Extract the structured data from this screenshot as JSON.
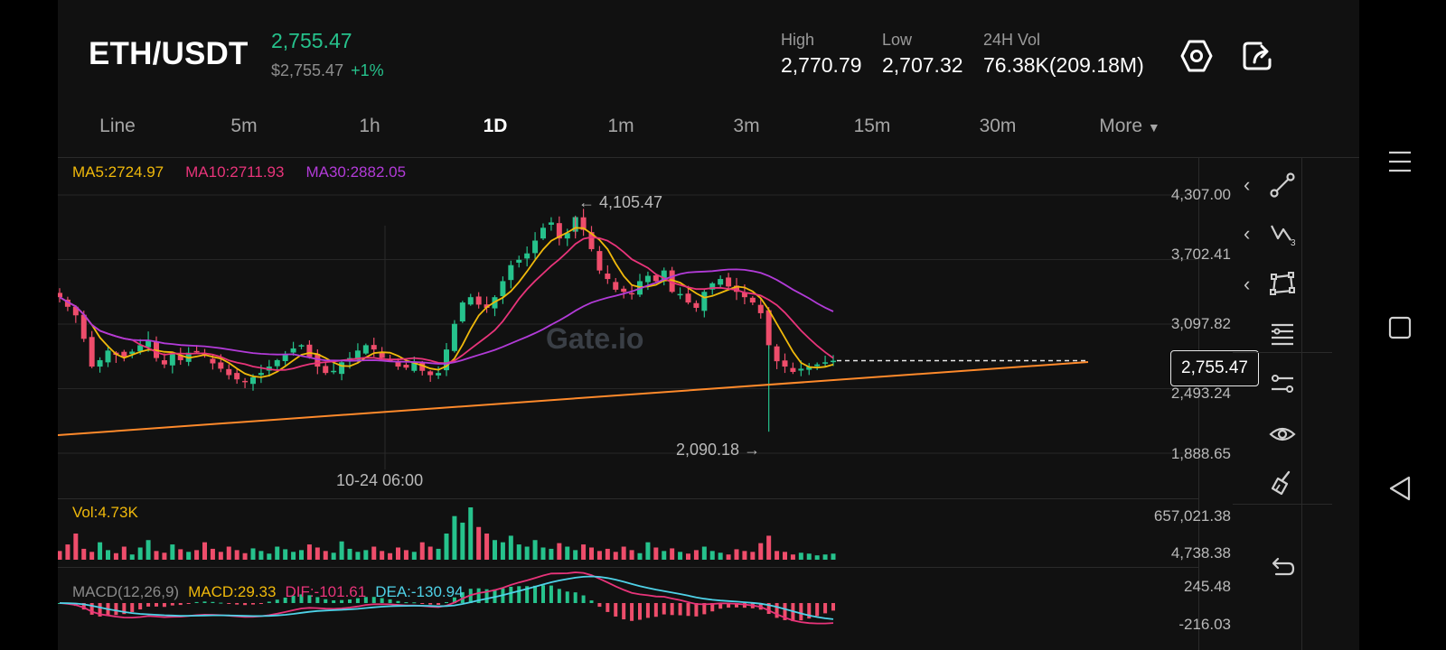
{
  "header": {
    "pair": "ETH/USDT",
    "price": "2,755.47",
    "price_usd": "$2,755.47",
    "change": "+1%",
    "stats": [
      {
        "label": "High",
        "value": "2,770.79"
      },
      {
        "label": "Low",
        "value": "2,707.32"
      },
      {
        "label": "24H Vol",
        "value": "76.38K(209.18M)"
      }
    ]
  },
  "tabs": [
    "Line",
    "5m",
    "1h",
    "1D",
    "1m",
    "3m",
    "15m",
    "30m",
    "More"
  ],
  "active_tab": "1D",
  "more_arrow": "▼",
  "ma": {
    "ma5": "MA5:2724.97",
    "ma10": "MA10:2711.93",
    "ma30": "MA30:2882.05"
  },
  "price_axis": [
    "4,307.00",
    "3,702.41",
    "3,097.82",
    "2,493.24",
    "1,888.65"
  ],
  "annotations": {
    "high": "← 4,105.47",
    "low": "2,090.18 →",
    "crosshair_time": "10-24 06:00"
  },
  "current_price_tag": "2,755.47",
  "watermark": "Gate.io",
  "volume": {
    "label": "Vol:4.73K",
    "axis_top": "657,021.38",
    "axis_bottom": "4,738.38"
  },
  "macd": {
    "params": "MACD(12,26,9)",
    "macd": "MACD:29.33",
    "dif": "DIF:-101.61",
    "dea": "DEA:-130.94",
    "axis_top": "245.48",
    "axis_bottom": "-216.03"
  },
  "colors": {
    "up": "#26c28c",
    "down": "#ee4d6b",
    "ma5": "#f0b90b",
    "ma10": "#e8347a",
    "ma30": "#b23bd8",
    "trendline": "#ff8a2b",
    "dea": "#4fd2e8"
  },
  "chart_data": {
    "type": "candlestick",
    "closes": [
      3350,
      3260,
      3180,
      2960,
      2700,
      2760,
      2850,
      2810,
      2790,
      2840,
      2900,
      2950,
      2780,
      2720,
      2820,
      2760,
      2830,
      2840,
      2800,
      2730,
      2680,
      2620,
      2580,
      2560,
      2600,
      2640,
      2700,
      2760,
      2820,
      2870,
      2900,
      2790,
      2700,
      2640,
      2660,
      2740,
      2780,
      2850,
      2900,
      2860,
      2780,
      2760,
      2700,
      2690,
      2740,
      2660,
      2620,
      2640,
      2860,
      3100,
      3300,
      3350,
      3280,
      3250,
      3350,
      3500,
      3650,
      3700,
      3760,
      3880,
      4000,
      4050,
      3900,
      3950,
      4100,
      3980,
      3800,
      3600,
      3520,
      3420,
      3400,
      3380,
      3500,
      3550,
      3500,
      3600,
      3400,
      3380,
      3300,
      3250,
      3400,
      3480,
      3520,
      3450,
      3400,
      3350,
      3300,
      3200,
      2900,
      2750,
      2700,
      2650,
      2680,
      2700,
      2720,
      2740,
      2755
    ],
    "ma5_last": 2724.97,
    "ma10_last": 2711.93,
    "ma30_last": 2882.05,
    "ylim": [
      1888.65,
      4307.0
    ],
    "volumes": [
      20,
      35,
      60,
      25,
      18,
      40,
      22,
      15,
      30,
      12,
      28,
      45,
      20,
      16,
      35,
      24,
      18,
      22,
      40,
      25,
      18,
      30,
      22,
      15,
      26,
      20,
      14,
      30,
      24,
      18,
      22,
      35,
      28,
      20,
      16,
      42,
      25,
      18,
      22,
      30,
      20,
      15,
      28,
      22,
      18,
      40,
      30,
      25,
      60,
      100,
      85,
      120,
      75,
      60,
      45,
      40,
      55,
      35,
      30,
      45,
      28,
      25,
      38,
      30,
      22,
      35,
      28,
      20,
      25,
      18,
      30,
      22,
      15,
      40,
      28,
      20,
      26,
      18,
      14,
      22,
      30,
      20,
      16,
      12,
      24,
      20,
      18,
      38,
      55,
      20,
      18,
      12,
      16,
      14,
      10,
      12,
      14
    ],
    "vol_ylim": [
      4738.38,
      657021.38
    ],
    "macd_ylim": [
      -216.03,
      245.48
    ]
  }
}
